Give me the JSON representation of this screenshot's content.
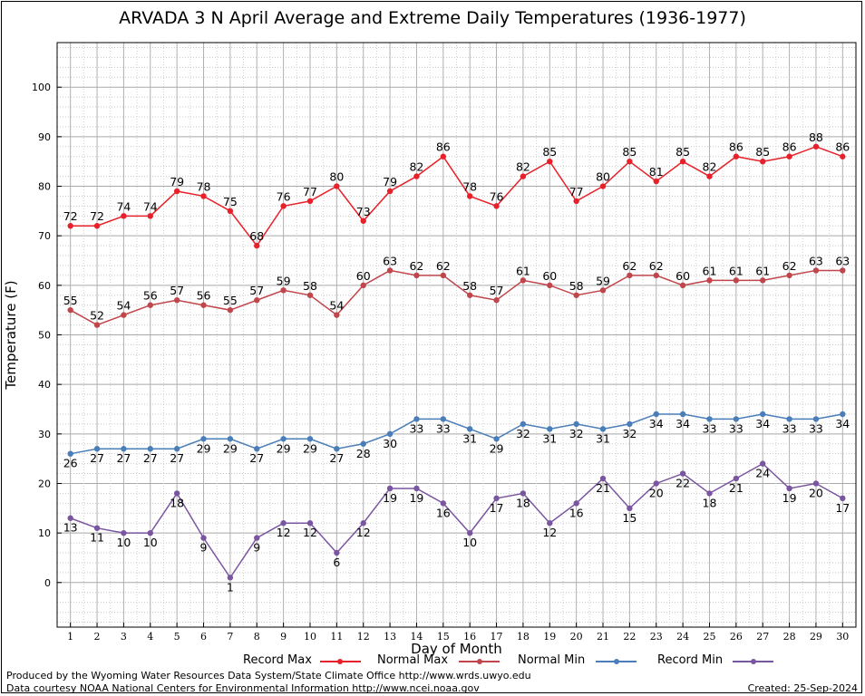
{
  "chart_data": {
    "type": "line",
    "title": "ARVADA 3 N April Average and Extreme Daily Temperatures (1936-1977)",
    "xlabel": "Day of Month",
    "ylabel": "Temperature (F)",
    "xlim": [
      0.5,
      30.5
    ],
    "ylim": [
      -9,
      109
    ],
    "yticks": [
      0,
      10,
      20,
      30,
      40,
      50,
      60,
      70,
      80,
      90,
      100
    ],
    "x": [
      1,
      2,
      3,
      4,
      5,
      6,
      7,
      8,
      9,
      10,
      11,
      12,
      13,
      14,
      15,
      16,
      17,
      18,
      19,
      20,
      21,
      22,
      23,
      24,
      25,
      26,
      27,
      28,
      29,
      30
    ],
    "grid": true,
    "legend_position": "bottom",
    "series": [
      {
        "name": "Record Max",
        "color": "#e8202a",
        "label_position": "above",
        "values": [
          72,
          72,
          74,
          74,
          79,
          78,
          75,
          68,
          76,
          77,
          80,
          73,
          79,
          82,
          86,
          78,
          76,
          82,
          85,
          77,
          80,
          85,
          81,
          85,
          82,
          86,
          85,
          86,
          88,
          86
        ]
      },
      {
        "name": "Normal Max",
        "color": "#c0464c",
        "label_position": "above",
        "values": [
          55,
          52,
          54,
          56,
          57,
          56,
          55,
          57,
          59,
          58,
          54,
          60,
          63,
          62,
          62,
          58,
          57,
          61,
          60,
          58,
          59,
          62,
          62,
          60,
          61,
          61,
          61,
          62,
          63,
          63
        ]
      },
      {
        "name": "Normal Min",
        "color": "#4a7eb8",
        "label_position": "below",
        "values": [
          26,
          27,
          27,
          27,
          27,
          29,
          29,
          27,
          29,
          29,
          27,
          28,
          30,
          33,
          33,
          31,
          29,
          32,
          31,
          32,
          31,
          32,
          34,
          34,
          33,
          33,
          34,
          33,
          33,
          34
        ]
      },
      {
        "name": "Record Min",
        "color": "#7a55a0",
        "label_position": "below",
        "values": [
          13,
          11,
          10,
          10,
          18,
          9,
          1,
          9,
          12,
          12,
          6,
          12,
          19,
          19,
          16,
          10,
          17,
          18,
          12,
          16,
          21,
          15,
          20,
          22,
          18,
          21,
          24,
          19,
          20,
          17
        ]
      }
    ]
  },
  "footer": {
    "produced_by": "Produced by the Wyoming Water Resources Data System/State Climate Office http://www.wrds.uwyo.edu",
    "courtesy": "Data courtesy NOAA National Centers for Environmental Information http://www.ncei.noaa.gov",
    "created": "Created:  25-Sep-2024"
  }
}
